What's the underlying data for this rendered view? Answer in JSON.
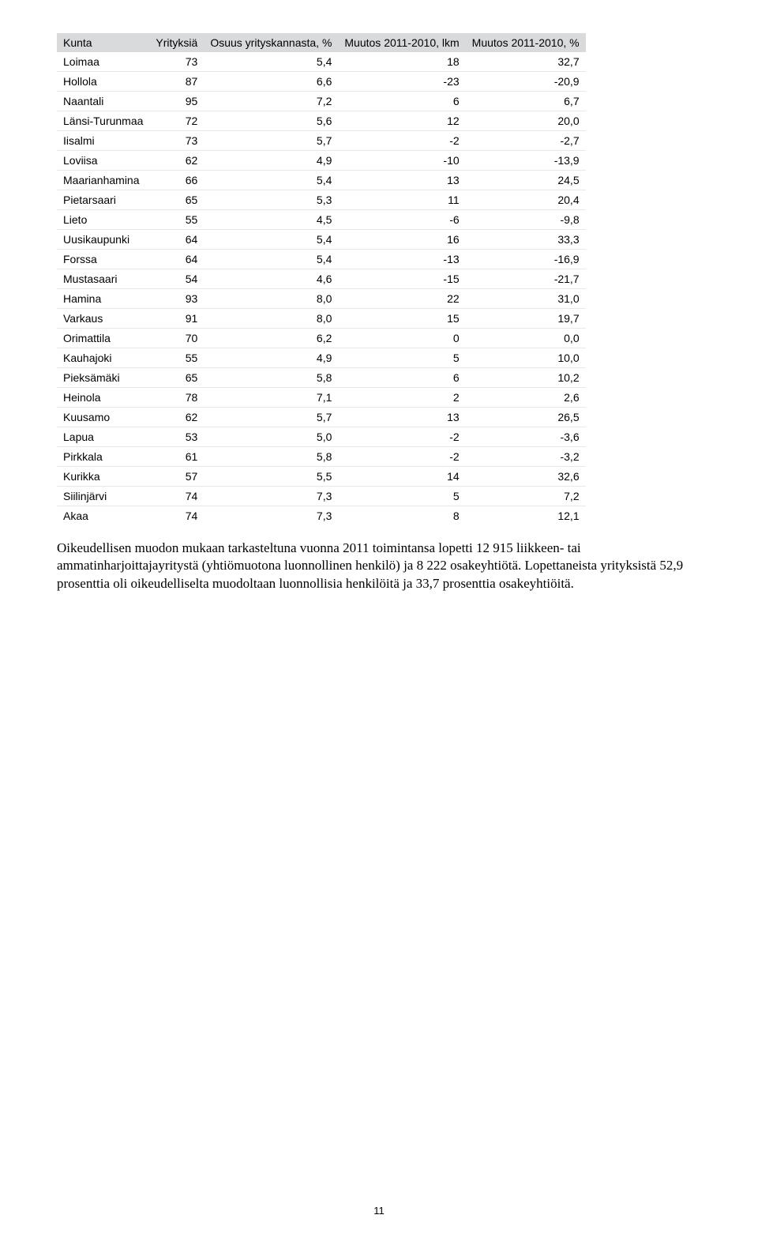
{
  "table": {
    "columns": [
      "Kunta",
      "Yrityksiä",
      "Osuus yrityskannasta, %",
      "Muutos 2011-2010, lkm",
      "Muutos 2011-2010, %"
    ],
    "rows": [
      [
        "Loimaa",
        "73",
        "5,4",
        "18",
        "32,7"
      ],
      [
        "Hollola",
        "87",
        "6,6",
        "-23",
        "-20,9"
      ],
      [
        "Naantali",
        "95",
        "7,2",
        "6",
        "6,7"
      ],
      [
        "Länsi-Turunmaa",
        "72",
        "5,6",
        "12",
        "20,0"
      ],
      [
        "Iisalmi",
        "73",
        "5,7",
        "-2",
        "-2,7"
      ],
      [
        "Loviisa",
        "62",
        "4,9",
        "-10",
        "-13,9"
      ],
      [
        "Maarianhamina",
        "66",
        "5,4",
        "13",
        "24,5"
      ],
      [
        "Pietarsaari",
        "65",
        "5,3",
        "11",
        "20,4"
      ],
      [
        "Lieto",
        "55",
        "4,5",
        "-6",
        "-9,8"
      ],
      [
        "Uusikaupunki",
        "64",
        "5,4",
        "16",
        "33,3"
      ],
      [
        "Forssa",
        "64",
        "5,4",
        "-13",
        "-16,9"
      ],
      [
        "Mustasaari",
        "54",
        "4,6",
        "-15",
        "-21,7"
      ],
      [
        "Hamina",
        "93",
        "8,0",
        "22",
        "31,0"
      ],
      [
        "Varkaus",
        "91",
        "8,0",
        "15",
        "19,7"
      ],
      [
        "Orimattila",
        "70",
        "6,2",
        "0",
        "0,0"
      ],
      [
        "Kauhajoki",
        "55",
        "4,9",
        "5",
        "10,0"
      ],
      [
        "Pieksämäki",
        "65",
        "5,8",
        "6",
        "10,2"
      ],
      [
        "Heinola",
        "78",
        "7,1",
        "2",
        "2,6"
      ],
      [
        "Kuusamo",
        "62",
        "5,7",
        "13",
        "26,5"
      ],
      [
        "Lapua",
        "53",
        "5,0",
        "-2",
        "-3,6"
      ],
      [
        "Pirkkala",
        "61",
        "5,8",
        "-2",
        "-3,2"
      ],
      [
        "Kurikka",
        "57",
        "5,5",
        "14",
        "32,6"
      ],
      [
        "Siilinjärvi",
        "74",
        "7,3",
        "5",
        "7,2"
      ],
      [
        "Akaa",
        "74",
        "7,3",
        "8",
        "12,1"
      ]
    ]
  },
  "paragraph": "Oikeudellisen muodon mukaan tarkasteltuna vuonna 2011 toimintansa lopetti 12 915 liikkeen- tai ammatinharjoittajayritystä (yhtiömuotona luonnollinen henkilö) ja 8 222 osakeyhtiötä. Lopettaneista yrityksistä 52,9 prosenttia oli oikeudelliselta muodoltaan luonnollisia henkilöitä ja 33,7 prosenttia osakeyhtiöitä.",
  "page_number": "11"
}
